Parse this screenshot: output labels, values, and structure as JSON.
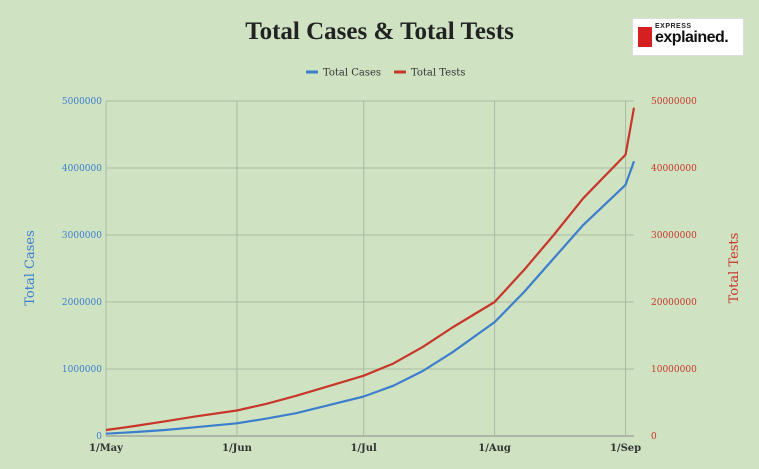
{
  "chart_data": {
    "type": "line",
    "title": "Total Cases & Total Tests",
    "x": [
      "1/May",
      "8/May",
      "15/May",
      "22/May",
      "1/Jun",
      "8/Jun",
      "15/Jun",
      "22/Jun",
      "1/Jul",
      "8/Jul",
      "15/Jul",
      "22/Jul",
      "1/Aug",
      "8/Aug",
      "15/Aug",
      "22/Aug",
      "1/Sep",
      "3/Sep"
    ],
    "x_ticks": [
      "1/May",
      "1/Jun",
      "1/Jul",
      "1/Aug",
      "1/Sep"
    ],
    "ylabel_left": "Total Cases",
    "ylabel_right": "Total Tests",
    "ylim_left": [
      0,
      5000000
    ],
    "ylim_right": [
      0,
      50000000
    ],
    "y_ticks_left": [
      "0",
      "1000000",
      "2000000",
      "3000000",
      "4000000",
      "5000000"
    ],
    "y_ticks_right": [
      "0",
      "10000000",
      "20000000",
      "30000000",
      "40000000",
      "50000000"
    ],
    "legend_position": "top-center",
    "grid": true,
    "series": [
      {
        "name": "Total Cases",
        "axis": "left",
        "color": "#3d7ecc",
        "values": [
          35000,
          60000,
          90000,
          130000,
          190000,
          260000,
          340000,
          450000,
          590000,
          750000,
          970000,
          1250000,
          1700000,
          2150000,
          2650000,
          3150000,
          3750000,
          4100000
        ]
      },
      {
        "name": "Total Tests",
        "axis": "right",
        "color": "#c8362a",
        "values": [
          900000,
          1500000,
          2200000,
          2900000,
          3800000,
          4800000,
          6000000,
          7300000,
          9000000,
          10800000,
          13300000,
          16200000,
          20000000,
          24800000,
          30000000,
          35500000,
          42000000,
          49000000
        ]
      }
    ]
  },
  "logo": {
    "small_text": "EXPRESS",
    "big_text": "explained."
  }
}
